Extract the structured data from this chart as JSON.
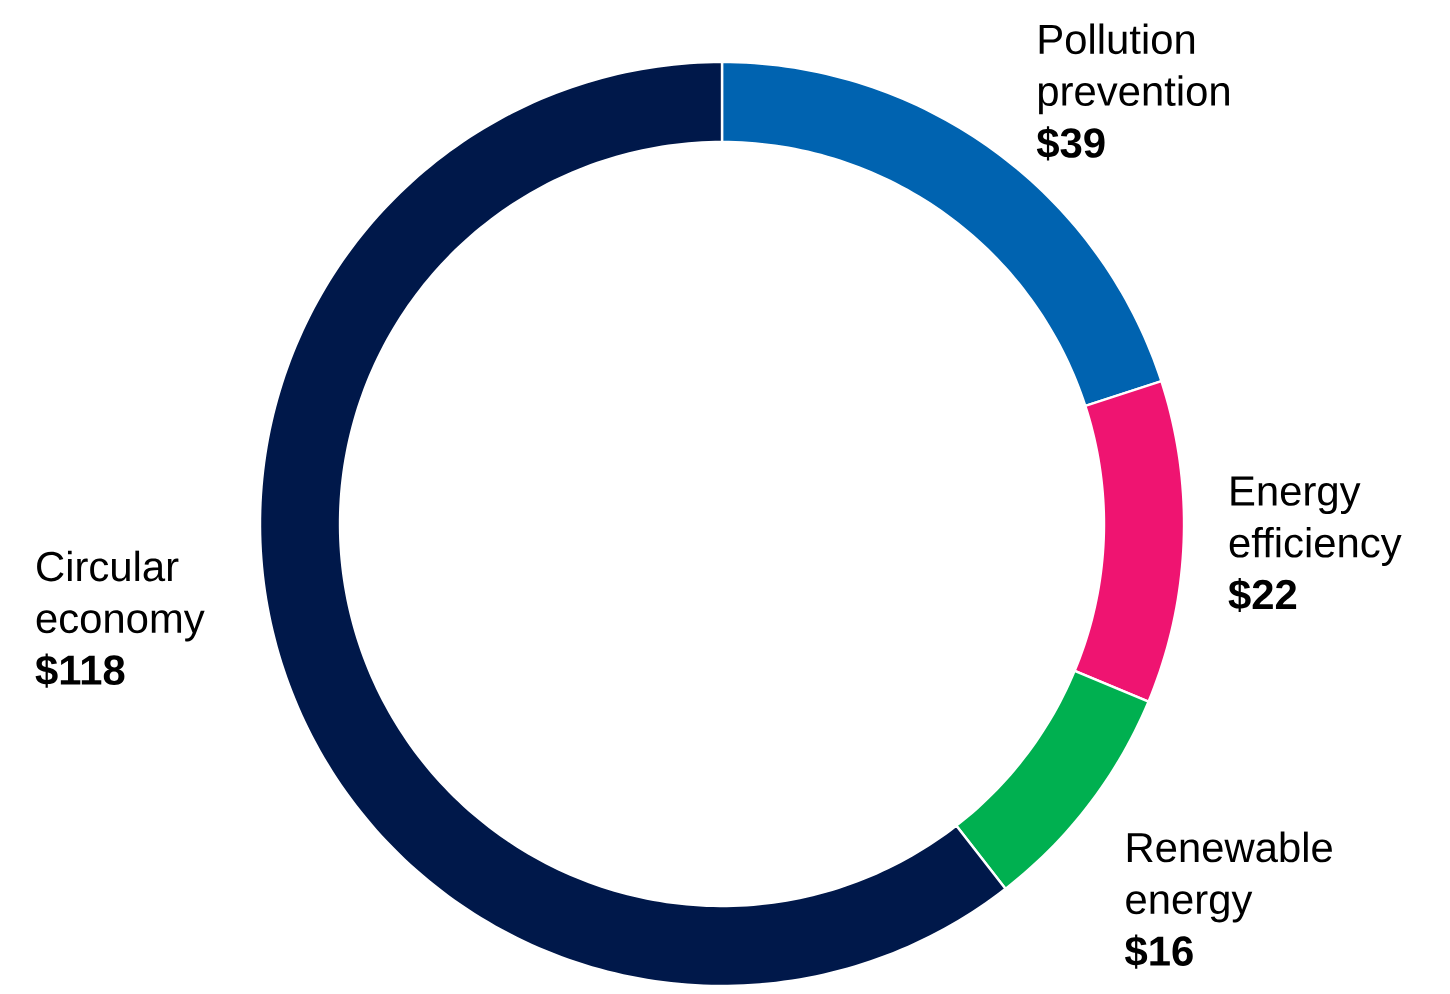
{
  "chart_data": {
    "type": "donut",
    "categories": [
      "Pollution prevention",
      "Energy efficiency",
      "Renewable energy",
      "Circular economy"
    ],
    "values": [
      39,
      22,
      16,
      118
    ],
    "colors": [
      "#0063b0",
      "#ef1471",
      "#00b050",
      "#00184a"
    ],
    "value_labels": [
      "$39",
      "$22",
      "$16",
      "$118"
    ]
  }
}
